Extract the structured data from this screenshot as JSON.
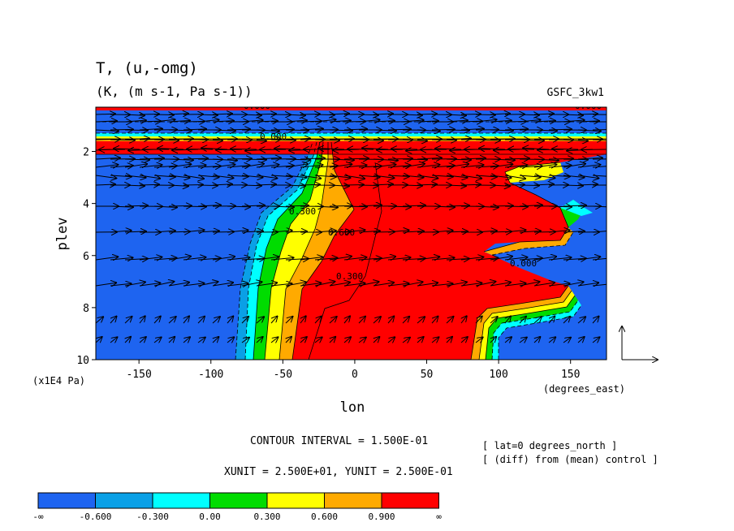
{
  "chart_data": {
    "type": "heatmap",
    "title": "T, (u,-omg)",
    "units": "(K, (m s-1, Pa s-1))",
    "run_label": "GSFC_3kw1",
    "xlabel": "lon",
    "x_unit_label": "(degrees_east)",
    "ylabel": "plev",
    "y_unit_label": "(x1E4 Pa)",
    "xlim": [
      -180,
      175
    ],
    "ylim": [
      10,
      0.3
    ],
    "x_ticks": [
      "-150",
      "-100",
      "-50",
      "0",
      "50",
      "100",
      "150"
    ],
    "y_ticks": [
      "2",
      "4",
      "6",
      "8",
      "10"
    ],
    "contour_interval_text": "CONTOUR INTERVAL = 1.500E-01",
    "vector_units_text": "XUNIT = 2.500E+01, YUNIT = 2.500E-01",
    "annotations": [
      "[ lat=0 degrees_north ]",
      "[ (diff) from (mean) control ]"
    ],
    "colorbar": {
      "labels": [
        "-∞",
        "-0.600",
        "-0.300",
        "0.00",
        "0.300",
        "0.600",
        "0.900",
        "∞"
      ],
      "colors": [
        "#1e64f0",
        "#0aa0e6",
        "#00ffff",
        "#00dc00",
        "#ffff00",
        "#ffaa00",
        "#ff0000"
      ]
    },
    "contour_labels": [
      "0.000",
      "0.000",
      "0.000",
      "0.300",
      "0.600",
      "0.300",
      "0.000"
    ]
  }
}
